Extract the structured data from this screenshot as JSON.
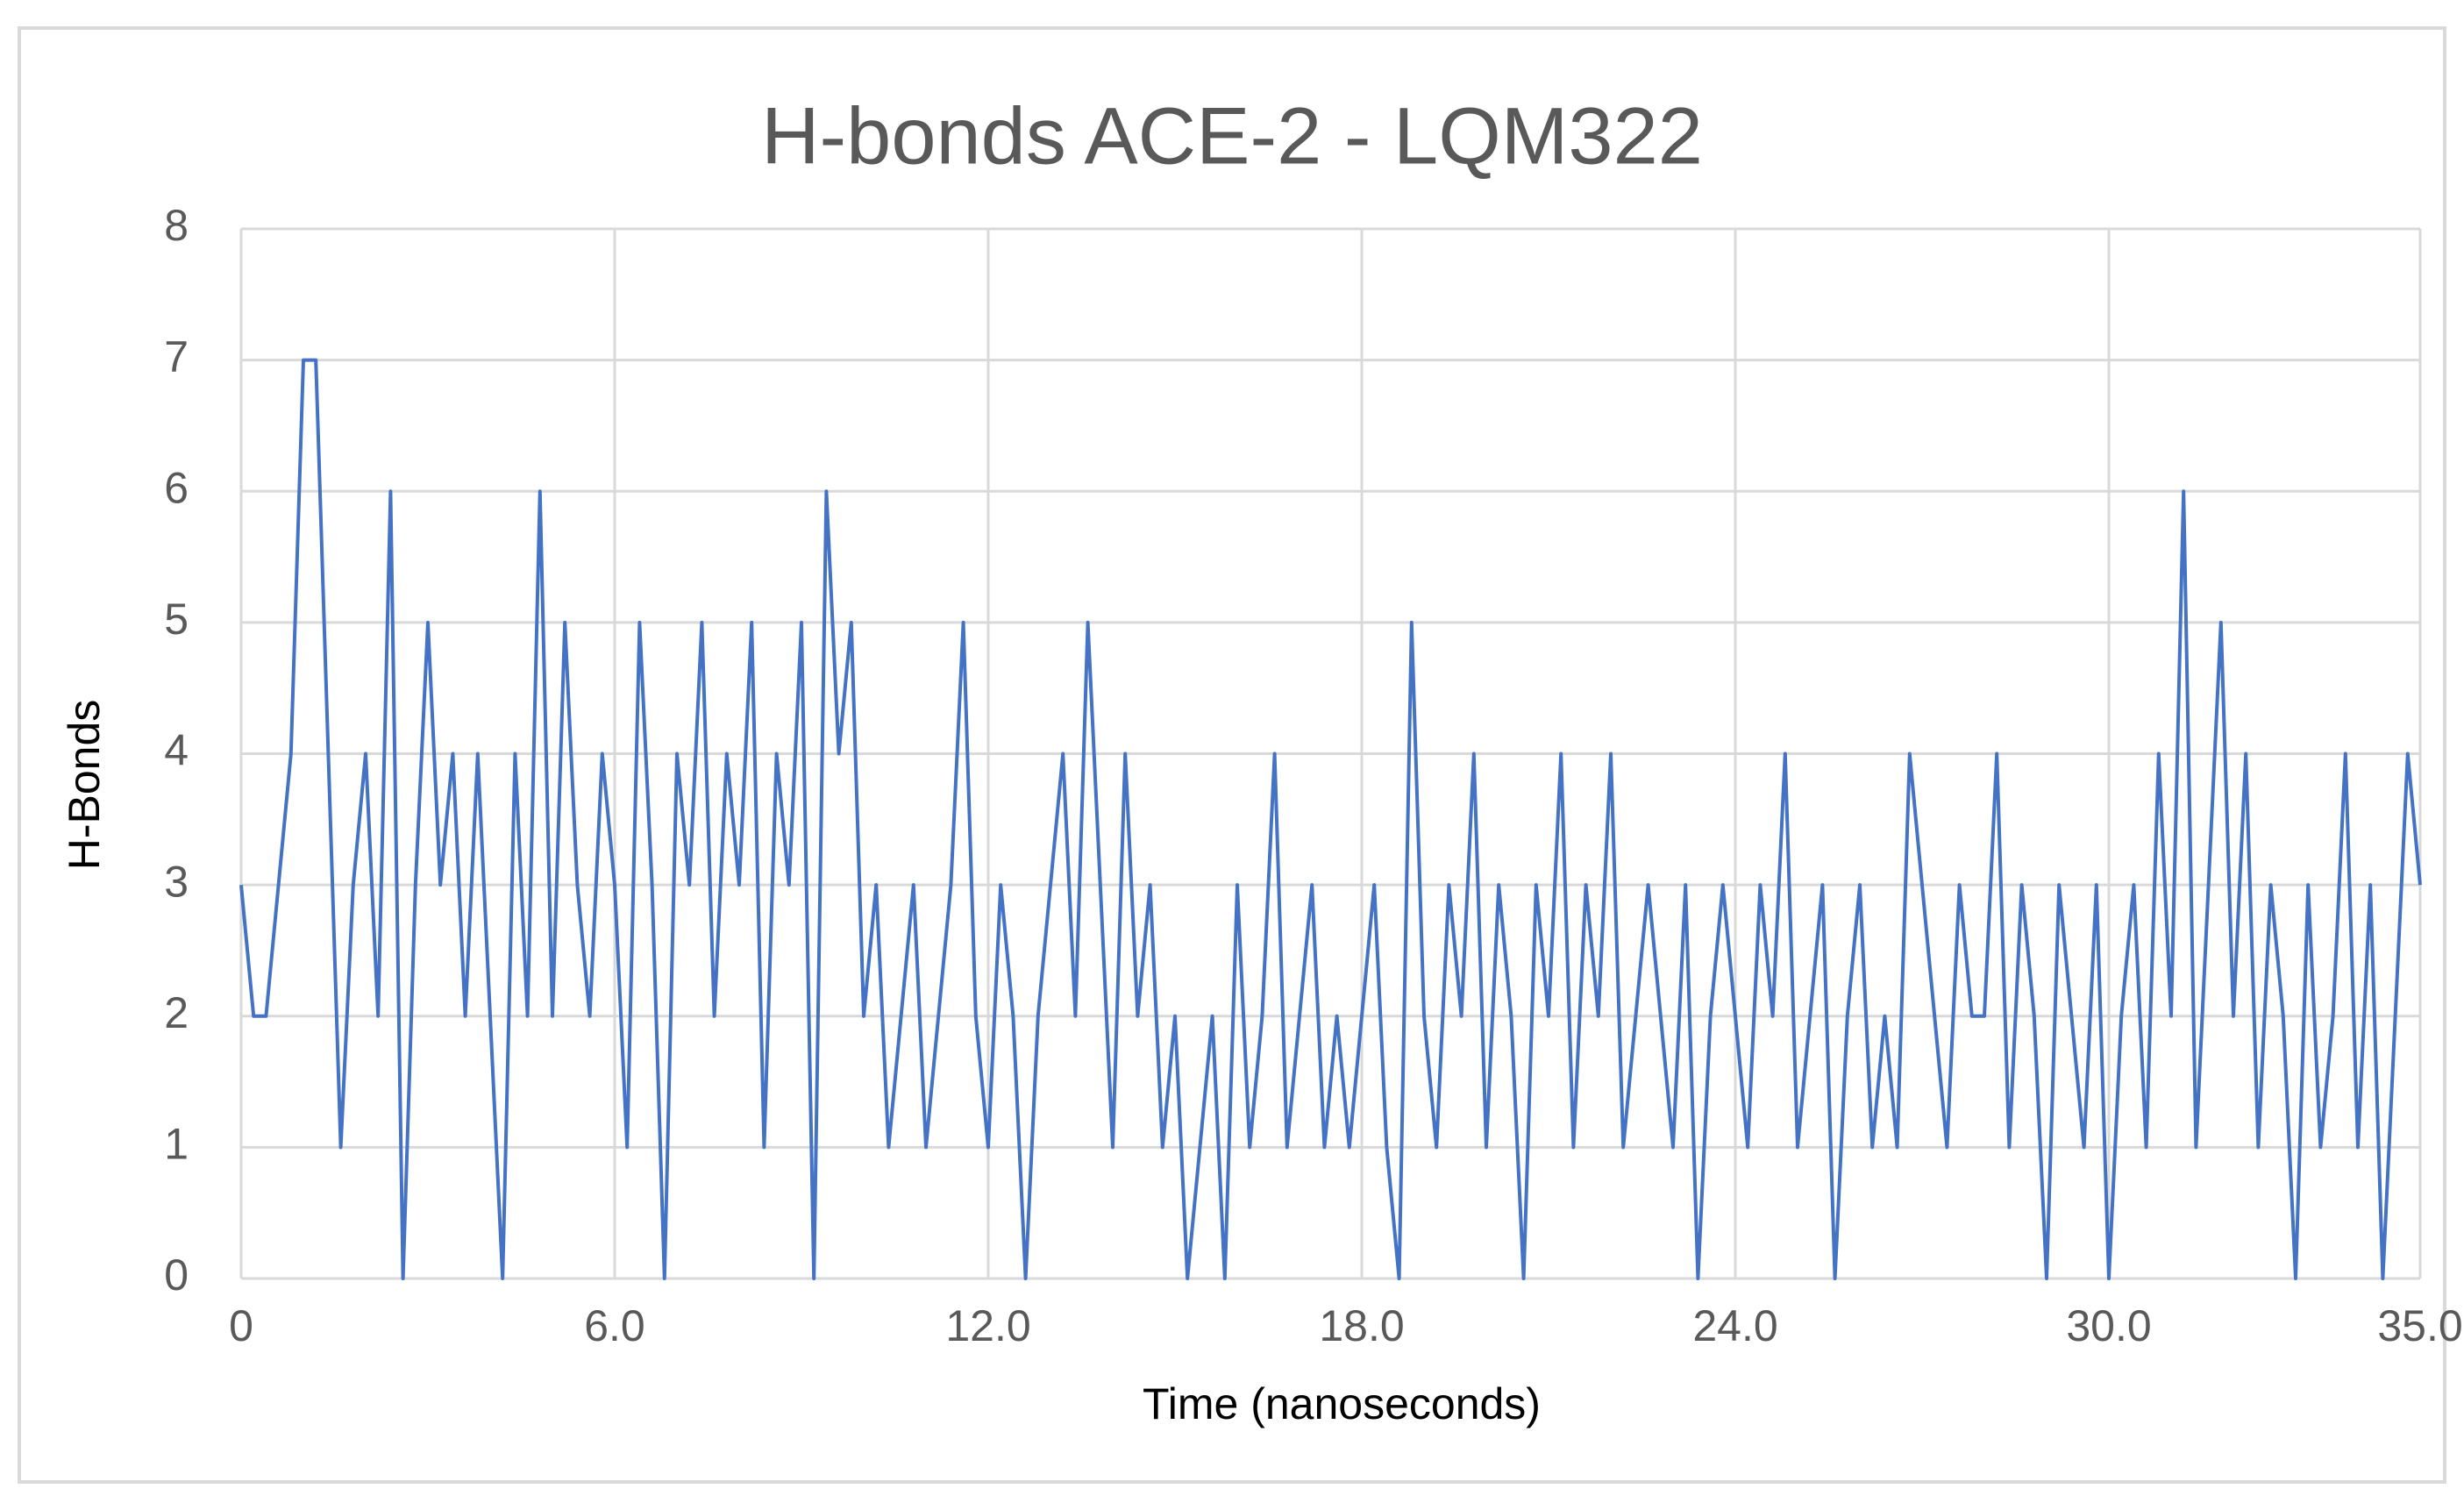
{
  "chart_data": {
    "type": "line",
    "title": "H-bonds ACE-2 - LQM322",
    "x_label": "Time (nanoseconds)",
    "y_label": "H-Bonds",
    "color": "#4472c4",
    "grid": true,
    "xlim": [
      0,
      35
    ],
    "xticks": [
      {
        "value": 0,
        "label": "0"
      },
      {
        "value": 6,
        "label": "6.0"
      },
      {
        "value": 12,
        "label": "12.0"
      },
      {
        "value": 18,
        "label": "18.0"
      },
      {
        "value": 24,
        "label": "24.0"
      },
      {
        "value": 30,
        "label": "30.0"
      },
      {
        "value": 35,
        "label": "35.0"
      }
    ],
    "ylim": [
      0,
      8
    ],
    "yticks": [
      0,
      1,
      2,
      3,
      4,
      5,
      6,
      7,
      8
    ],
    "x": [
      0,
      0.2,
      0.4,
      0.6,
      0.8,
      1.0,
      1.2,
      1.4,
      1.6,
      1.8,
      2.0,
      2.2,
      2.4,
      2.6,
      2.8,
      3.0,
      3.2,
      3.4,
      3.6,
      3.8,
      4.0,
      4.2,
      4.4,
      4.6,
      4.8,
      5.0,
      5.2,
      5.4,
      5.6,
      5.8,
      6.0,
      6.2,
      6.4,
      6.6,
      6.8,
      7.0,
      7.2,
      7.4,
      7.6,
      7.8,
      8.0,
      8.2,
      8.4,
      8.6,
      8.8,
      9.0,
      9.2,
      9.4,
      9.6,
      9.8,
      10.0,
      10.2,
      10.4,
      10.6,
      10.8,
      11.0,
      11.2,
      11.4,
      11.6,
      11.8,
      12.0,
      12.2,
      12.4,
      12.6,
      12.8,
      13.0,
      13.2,
      13.4,
      13.6,
      13.8,
      14.0,
      14.2,
      14.4,
      14.6,
      14.8,
      15.0,
      15.2,
      15.4,
      15.6,
      15.8,
      16.0,
      16.2,
      16.4,
      16.6,
      16.8,
      17.0,
      17.2,
      17.4,
      17.6,
      17.8,
      18.0,
      18.2,
      18.4,
      18.6,
      18.8,
      19.0,
      19.2,
      19.4,
      19.6,
      19.8,
      20.0,
      20.2,
      20.4,
      20.6,
      20.8,
      21.0,
      21.2,
      21.4,
      21.6,
      21.8,
      22.0,
      22.2,
      22.4,
      22.6,
      22.8,
      23.0,
      23.2,
      23.4,
      23.6,
      23.8,
      24.0,
      24.2,
      24.4,
      24.6,
      24.8,
      25.0,
      25.2,
      25.4,
      25.6,
      25.8,
      26.0,
      26.2,
      26.4,
      26.6,
      26.8,
      27.0,
      27.2,
      27.4,
      27.6,
      27.8,
      28.0,
      28.2,
      28.4,
      28.6,
      28.8,
      29.0,
      29.2,
      29.4,
      29.6,
      29.8,
      30.0,
      30.2,
      30.4,
      30.6,
      30.8,
      31.0,
      31.2,
      31.4,
      31.6,
      31.8,
      32.0,
      32.2,
      32.4,
      32.6,
      32.8,
      33.0,
      33.2,
      33.4,
      33.6,
      33.8,
      34.0,
      34.2,
      34.4,
      34.6,
      34.8,
      35.0
    ],
    "values": [
      3,
      2,
      2,
      3,
      4,
      7,
      7,
      4,
      1,
      3,
      4,
      2,
      6,
      0,
      3,
      5,
      3,
      4,
      2,
      4,
      2,
      0,
      4,
      2,
      6,
      2,
      5,
      3,
      2,
      4,
      3,
      1,
      5,
      3,
      0,
      4,
      3,
      5,
      2,
      4,
      3,
      5,
      1,
      4,
      3,
      5,
      0,
      6,
      4,
      5,
      2,
      3,
      1,
      2,
      3,
      1,
      2,
      3,
      5,
      2,
      1,
      3,
      2,
      0,
      2,
      3,
      4,
      2,
      5,
      3,
      1,
      4,
      2,
      3,
      1,
      2,
      0,
      1,
      2,
      0,
      3,
      1,
      2,
      4,
      1,
      2,
      3,
      1,
      2,
      1,
      2,
      3,
      1,
      0,
      5,
      2,
      1,
      3,
      2,
      4,
      1,
      3,
      2,
      0,
      3,
      2,
      4,
      1,
      3,
      2,
      4,
      1,
      2,
      3,
      2,
      1,
      3,
      0,
      2,
      3,
      2,
      1,
      3,
      2,
      4,
      1,
      2,
      3,
      0,
      2,
      3,
      1,
      2,
      1,
      4,
      3,
      2,
      1,
      3,
      2,
      2,
      4,
      1,
      3,
      2,
      0,
      3,
      2,
      1,
      3,
      0,
      2,
      3,
      1,
      4,
      2,
      6,
      1,
      3,
      5,
      2,
      4,
      1,
      3,
      2,
      0,
      3,
      1,
      2,
      4,
      1,
      3,
      0,
      2,
      4,
      3
    ]
  }
}
